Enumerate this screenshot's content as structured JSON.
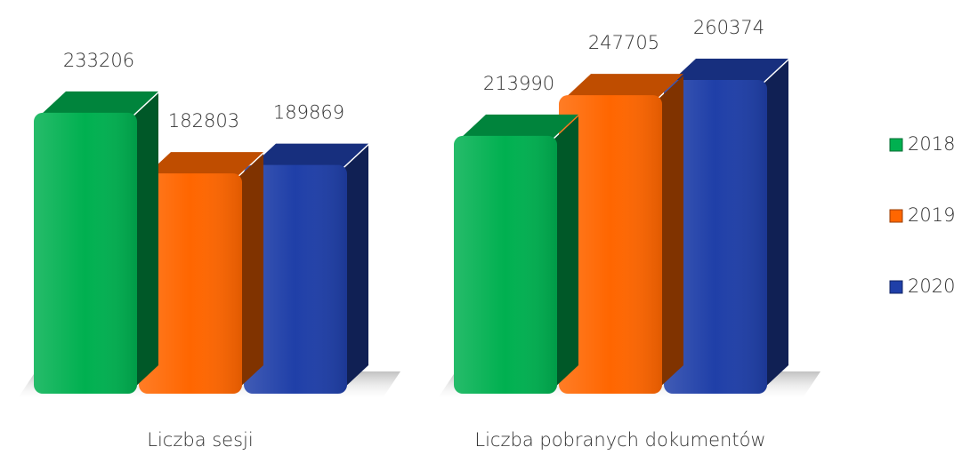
{
  "chart_data": {
    "type": "bar3d",
    "categories": [
      "Liczba sesji",
      "Liczba pobranych dokumentów"
    ],
    "series": [
      {
        "name": "2018",
        "color": "#00b050",
        "values": [
          233206,
          213990
        ]
      },
      {
        "name": "2019",
        "color": "#ff6600",
        "values": [
          182803,
          247705
        ]
      },
      {
        "name": "2020",
        "color": "#1f3fa8",
        "values": [
          189869,
          260374
        ]
      }
    ],
    "legend": "right"
  }
}
